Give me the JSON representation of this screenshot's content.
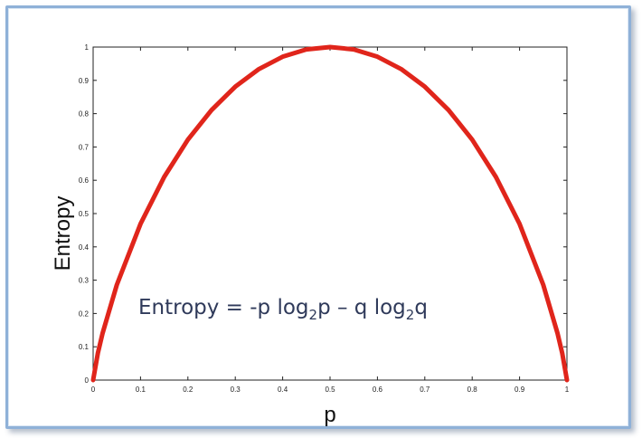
{
  "chart_data": {
    "type": "line",
    "title": "",
    "xlabel": "p",
    "ylabel": "Entropy",
    "xlim": [
      0,
      1
    ],
    "ylim": [
      0,
      1
    ],
    "grid": false,
    "legend": "none",
    "x_ticks": [
      "0",
      "0.1",
      "0.2",
      "0.3",
      "0.4",
      "0.5",
      "0.6",
      "0.7",
      "0.8",
      "0.9",
      "1"
    ],
    "y_ticks": [
      "0",
      "0.1",
      "0.2",
      "0.3",
      "0.4",
      "0.5",
      "0.6",
      "0.7",
      "0.8",
      "0.9",
      "1"
    ],
    "series": [
      {
        "color": "#e0251b",
        "x": [
          0,
          0.01,
          0.02,
          0.05,
          0.1,
          0.15,
          0.2,
          0.25,
          0.3,
          0.35,
          0.4,
          0.45,
          0.5,
          0.55,
          0.6,
          0.65,
          0.7,
          0.75,
          0.8,
          0.85,
          0.9,
          0.95,
          0.98,
          0.99,
          1
        ],
        "y": [
          0,
          0.081,
          0.141,
          0.286,
          0.469,
          0.61,
          0.722,
          0.811,
          0.881,
          0.934,
          0.971,
          0.993,
          1,
          0.993,
          0.971,
          0.934,
          0.881,
          0.811,
          0.722,
          0.61,
          0.469,
          0.286,
          0.141,
          0.081,
          0
        ]
      }
    ],
    "annotation": {
      "prefix": "Entropy  = -p log",
      "sub1": "2",
      "middle": "p – q log",
      "sub2": "2",
      "suffix": "q"
    }
  },
  "colors": {
    "frame": "#8fb1d8",
    "curve": "#e0251b",
    "formula": "#2f3a5a"
  }
}
